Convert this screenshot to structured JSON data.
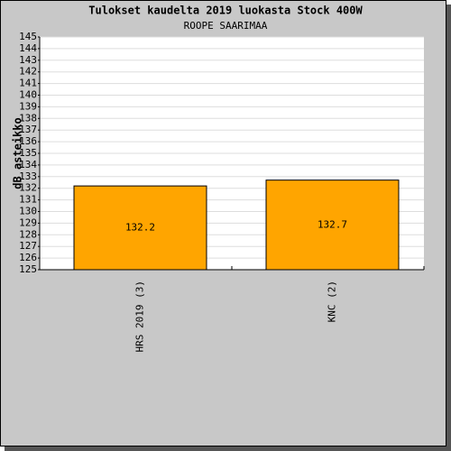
{
  "chart_data": {
    "type": "bar",
    "title": "Tulokset kaudelta 2019 luokasta Stock 400W",
    "subtitle": "ROOPE SAARIMAA",
    "y_label": "dB asteikko",
    "categories": [
      "HRS 2019 (3)",
      "KNC (2)"
    ],
    "values": [
      132.2,
      132.7
    ],
    "color": "#ffa500",
    "ylim": [
      125,
      145
    ],
    "yticks": [
      125,
      126,
      127,
      128,
      129,
      130,
      131,
      132,
      133,
      134,
      135,
      136,
      137,
      138,
      139,
      140,
      141,
      142,
      143,
      144,
      145
    ],
    "grid": true
  }
}
